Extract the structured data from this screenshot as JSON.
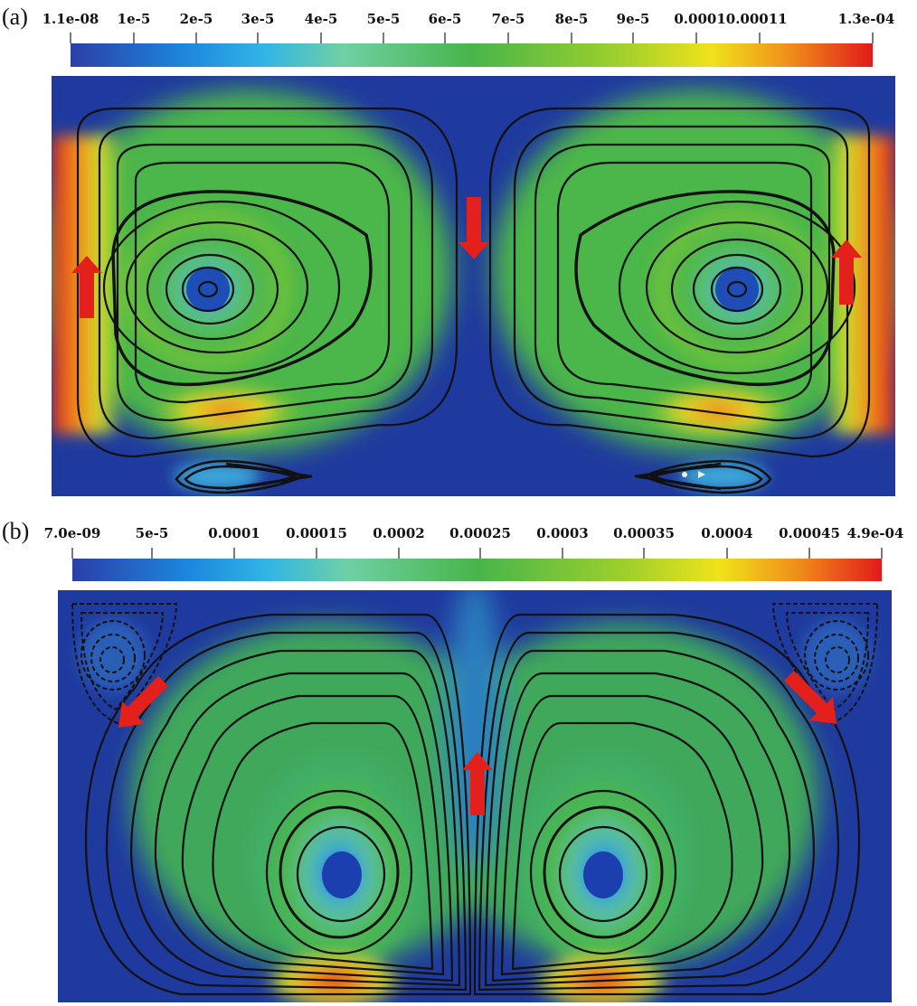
{
  "panels": [
    {
      "label": "(a)",
      "colorbar": {
        "ticks": [
          "1.1e-08",
          "1e-5",
          "2e-5",
          "3e-5",
          "4e-5",
          "5e-5",
          "6e-5",
          "7e-5",
          "8e-5",
          "9e-5",
          "0.00010.00011",
          "1.3e-04"
        ],
        "colormap": [
          "#2c3fa8",
          "#1fa3e8",
          "#7ed6a0",
          "#47b54a",
          "#9ccf2c",
          "#f0e21a",
          "#f08a1a",
          "#e21a1a"
        ]
      },
      "arrows": [
        "down",
        "up",
        "up"
      ]
    },
    {
      "label": "(b)",
      "colorbar": {
        "ticks": [
          "7.0e-09",
          "5e-5",
          "0.0001",
          "0.00015",
          "0.0002",
          "0.00025",
          "0.0003",
          "0.00035",
          "0.0004",
          "0.00045",
          "4.9e-04"
        ],
        "colormap": [
          "#2c3fa8",
          "#1fa3e8",
          "#7ed6a0",
          "#47b54a",
          "#9ccf2c",
          "#f0e21a",
          "#f08a1a",
          "#e21a1a"
        ]
      },
      "arrows": [
        "down-left",
        "down-right",
        "up"
      ]
    }
  ],
  "colors": {
    "arrow": "#e3201b",
    "streamline": "#111111",
    "background_field": "#1f3a9e"
  }
}
